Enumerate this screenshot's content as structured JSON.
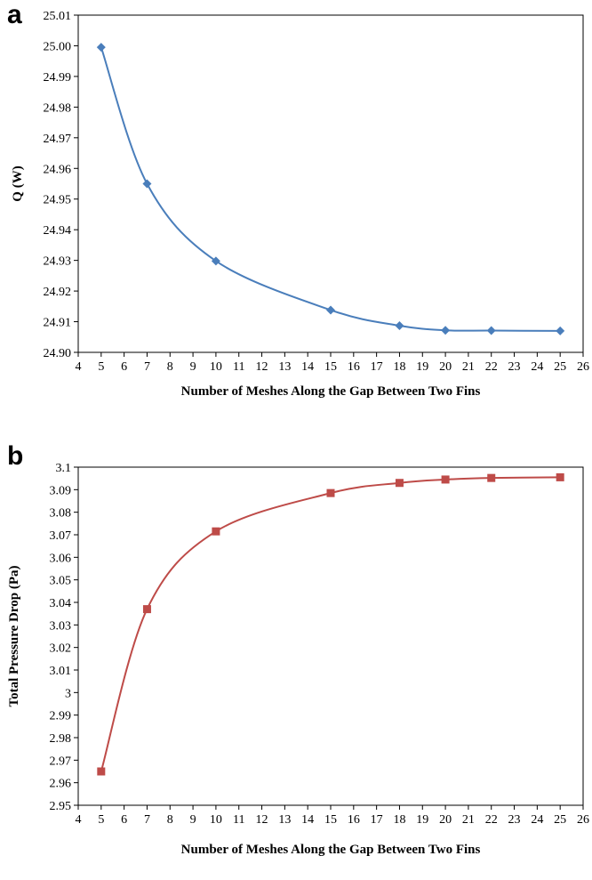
{
  "chart_data": [
    {
      "panel_label": "a",
      "type": "line",
      "smooth": true,
      "marker": "diamond",
      "color": "#4a7ebb",
      "xlabel": "Number of Meshes Along the Gap Between Two Fins",
      "ylabel": "Q (W)",
      "xlim": [
        4,
        26
      ],
      "ylim": [
        24.9,
        25.01
      ],
      "xticks": [
        "4",
        "5",
        "6",
        "7",
        "8",
        "9",
        "10",
        "11",
        "12",
        "13",
        "14",
        "15",
        "16",
        "17",
        "18",
        "19",
        "20",
        "21",
        "22",
        "23",
        "24",
        "25",
        "26"
      ],
      "yticks": [
        "24.90",
        "24.91",
        "24.92",
        "24.93",
        "24.94",
        "24.95",
        "24.96",
        "24.97",
        "24.98",
        "24.99",
        "25.00",
        "25.01"
      ],
      "x": [
        5,
        7,
        10,
        15,
        18,
        20,
        22,
        25
      ],
      "y": [
        24.9995,
        24.955,
        24.9298,
        24.9138,
        24.9087,
        24.9072,
        24.9071,
        24.907
      ],
      "grid": false,
      "legend": false
    },
    {
      "panel_label": "b",
      "type": "line",
      "smooth": true,
      "marker": "square",
      "color": "#be4b48",
      "xlabel": "Number of Meshes Along the Gap Between Two Fins",
      "ylabel": "Total Pressure Drop (Pa)",
      "xlim": [
        4,
        26
      ],
      "ylim": [
        2.95,
        3.1
      ],
      "xticks": [
        "4",
        "5",
        "6",
        "7",
        "8",
        "9",
        "10",
        "11",
        "12",
        "13",
        "14",
        "15",
        "16",
        "17",
        "18",
        "19",
        "20",
        "21",
        "22",
        "23",
        "24",
        "25",
        "26"
      ],
      "yticks": [
        "2.95",
        "2.96",
        "2.97",
        "2.98",
        "2.99",
        "3",
        "3.01",
        "3.02",
        "3.03",
        "3.04",
        "3.05",
        "3.06",
        "3.07",
        "3.08",
        "3.09",
        "3.1"
      ],
      "x": [
        5,
        7,
        10,
        15,
        18,
        20,
        22,
        25
      ],
      "y": [
        2.965,
        3.037,
        3.0715,
        3.0885,
        3.093,
        3.0945,
        3.0952,
        3.0955
      ],
      "grid": false,
      "legend": false
    }
  ]
}
